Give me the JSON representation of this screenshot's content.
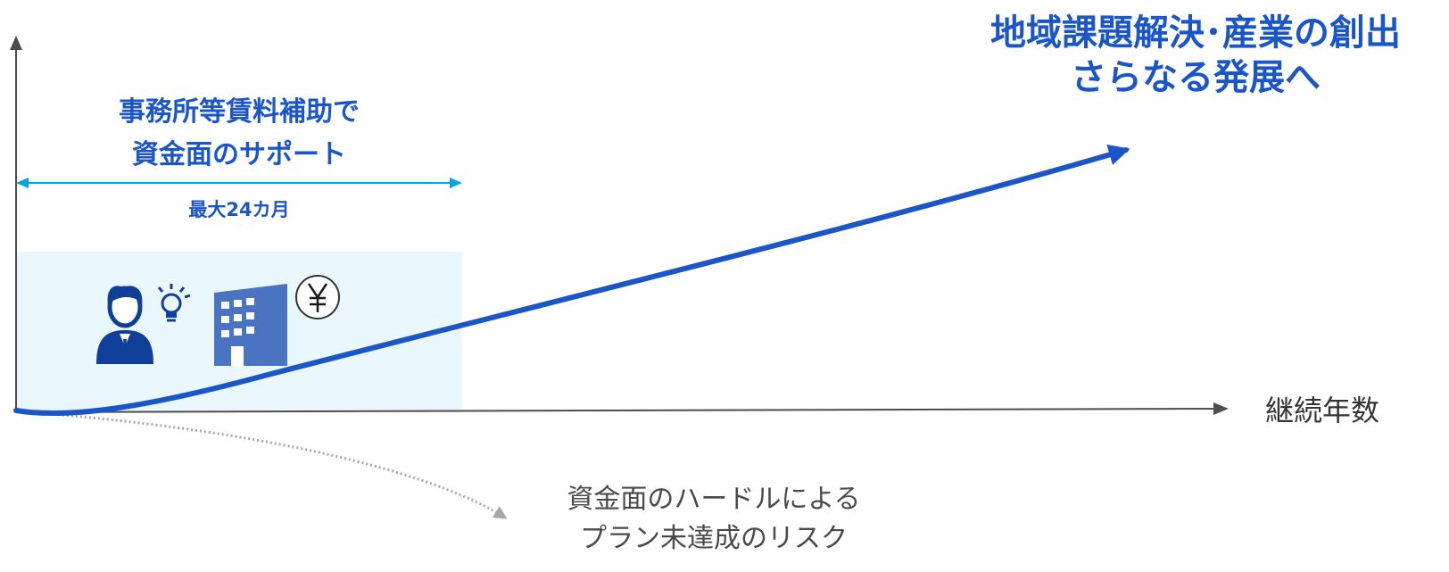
{
  "goal": {
    "line1": "地域課題解決･産業の創出",
    "line2": "さらなる発展へ"
  },
  "support": {
    "line1": "事務所等賃料補助で",
    "line2": "資金面のサポート"
  },
  "duration_label": "最大24カ月",
  "x_axis_label": "継続年数",
  "risk": {
    "line1": "資金面のハードルによる",
    "line2": "プラン未達成のリスク"
  },
  "icons": [
    "person-icon",
    "lightbulb-icon",
    "office-building-icon",
    "yen-coin-icon"
  ],
  "colors": {
    "primary_blue": "#1a56c8",
    "span_arrow": "#00a7e1",
    "support_panel": "#eaf7fd",
    "axis": "#4d4d4d",
    "risk_arrow": "#a6a6a6",
    "icon_blue": "#0f3f99",
    "building_blue": "#4a73c2"
  }
}
